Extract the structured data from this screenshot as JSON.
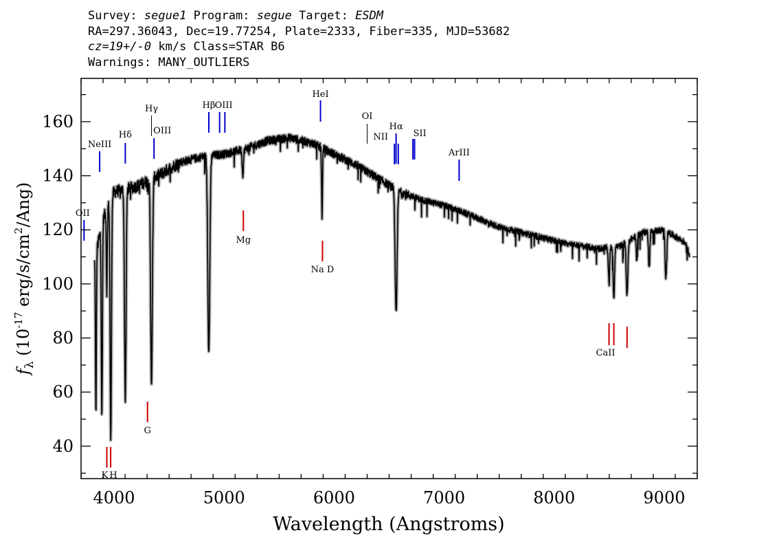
{
  "header": {
    "survey_label": "Survey:",
    "survey": "segue1",
    "program_label": "Program:",
    "program": "segue",
    "target_label": "Target:",
    "target": "ESDM",
    "line2": "RA=297.36043, Dec=19.77254, Plate=2333, Fiber=335, MJD=53682",
    "cz": "cz=19+/-0",
    "line3_rest": " km/s Class=STAR B6",
    "line4": "Warnings: MANY_OUTLIERS"
  },
  "chart_data": {
    "type": "line",
    "title": "",
    "xlabel": "Wavelength (Angstroms)",
    "ylabel": "f_λ (10^-17 erg/s/cm^2/Ang)",
    "xlim": [
      3700,
      9300
    ],
    "ylim": [
      28,
      176
    ],
    "xticks": [
      4000,
      5000,
      6000,
      7000,
      8000,
      9000
    ],
    "yticks": [
      40,
      60,
      80,
      100,
      120,
      140,
      160
    ],
    "colors": {
      "spectrum": "#000000",
      "error": "#b0b0b0",
      "emission": "#0000cc",
      "absorption": "#cc0000"
    },
    "continuum": [
      [
        3820,
        108
      ],
      [
        3900,
        124
      ],
      [
        4000,
        134
      ],
      [
        4200,
        136
      ],
      [
        4400,
        140
      ],
      [
        4600,
        145
      ],
      [
        4800,
        147
      ],
      [
        5000,
        148
      ],
      [
        5200,
        150
      ],
      [
        5400,
        153
      ],
      [
        5600,
        154
      ],
      [
        5800,
        152
      ],
      [
        6000,
        148
      ],
      [
        6200,
        144
      ],
      [
        6400,
        139
      ],
      [
        6600,
        134
      ],
      [
        6800,
        131
      ],
      [
        7000,
        129
      ],
      [
        7200,
        126
      ],
      [
        7500,
        121
      ],
      [
        7800,
        118
      ],
      [
        8100,
        115
      ],
      [
        8400,
        113
      ],
      [
        8600,
        114
      ],
      [
        8800,
        119
      ],
      [
        9000,
        120
      ],
      [
        9200,
        115
      ],
      [
        9230,
        110
      ]
    ],
    "absorption_features": [
      {
        "wave": 3835,
        "depth": 60,
        "width": 4
      },
      {
        "wave": 3889,
        "depth": 70,
        "width": 5
      },
      {
        "wave": 3934,
        "depth": 30,
        "width": 4
      },
      {
        "wave": 3970,
        "depth": 88,
        "width": 6
      },
      {
        "wave": 4102,
        "depth": 78,
        "width": 7
      },
      {
        "wave": 4340,
        "depth": 75,
        "width": 8
      },
      {
        "wave": 4861,
        "depth": 73,
        "width": 9
      },
      {
        "wave": 5170,
        "depth": 9,
        "width": 6
      },
      {
        "wave": 5890,
        "depth": 25,
        "width": 4
      },
      {
        "wave": 6563,
        "depth": 45,
        "width": 9
      },
      {
        "wave": 8498,
        "depth": 12,
        "width": 6
      },
      {
        "wave": 8542,
        "depth": 19,
        "width": 6
      },
      {
        "wave": 8662,
        "depth": 20,
        "width": 7
      },
      {
        "wave": 8750,
        "depth": 9,
        "width": 5
      },
      {
        "wave": 8863,
        "depth": 13,
        "width": 6
      },
      {
        "wave": 9015,
        "depth": 17,
        "width": 7
      }
    ],
    "emission_lines": [
      {
        "label": "OII",
        "wave": 3727
      },
      {
        "label": "NeIII",
        "wave": 3869
      },
      {
        "label": "Hδ",
        "wave": 4102
      },
      {
        "label": "Hγ",
        "wave": 4340
      },
      {
        "label": "OIII",
        "wave": 4363
      },
      {
        "label": "Hβ",
        "wave": 4861
      },
      {
        "label": "OIII",
        "wave": 4959
      },
      {
        "label": "OIII",
        "wave": 5007
      },
      {
        "label": "HeI",
        "wave": 5876
      },
      {
        "label": "OI",
        "wave": 6300
      },
      {
        "label": "NII",
        "wave": 6548
      },
      {
        "label": "Hα",
        "wave": 6563
      },
      {
        "label": "NII",
        "wave": 6583
      },
      {
        "label": "SII",
        "wave": 6716
      },
      {
        "label": "SII",
        "wave": 6731
      },
      {
        "label": "ArIII",
        "wave": 7136
      }
    ],
    "absorption_lines": [
      {
        "label": "K",
        "wave": 3934
      },
      {
        "label": "H",
        "wave": 3969
      },
      {
        "label": "G",
        "wave": 4304
      },
      {
        "label": "Mg",
        "wave": 5175
      },
      {
        "label": "Na D",
        "wave": 5894
      },
      {
        "label": "CaII",
        "wave": 8498
      },
      {
        "label": "CaII",
        "wave": 8542
      },
      {
        "label": "CaII",
        "wave": 8662
      }
    ]
  }
}
